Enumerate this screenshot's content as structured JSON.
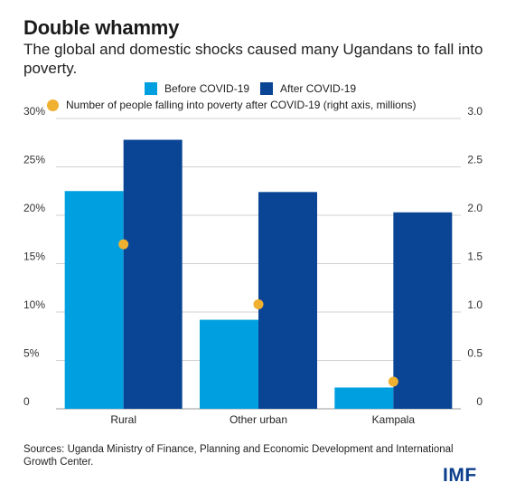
{
  "header": {
    "title": "Double whammy",
    "subtitle": "The global and domestic shocks caused many Ugandans to fall into poverty."
  },
  "legend": {
    "before": "Before COVID-19",
    "after": "After COVID-19",
    "people": "Number of people falling into poverty after COVID-19 (right axis, millions)"
  },
  "colors": {
    "before": "#00a0e0",
    "after": "#0a4595",
    "people": "#f0b030",
    "grid": "#d0d0d0"
  },
  "chart_data": {
    "type": "bar",
    "categories": [
      "Rural",
      "Other urban",
      "Kampala"
    ],
    "series": [
      {
        "name": "Before COVID-19",
        "values": [
          22.5,
          9.2,
          2.2
        ],
        "axis": "left",
        "kind": "bar"
      },
      {
        "name": "After COVID-19",
        "values": [
          27.8,
          22.4,
          20.3
        ],
        "axis": "left",
        "kind": "bar"
      },
      {
        "name": "Number of people falling into poverty after COVID-19 (right axis, millions)",
        "values": [
          1.7,
          1.08,
          0.28
        ],
        "axis": "right",
        "kind": "scatter"
      }
    ],
    "ylim": [
      0,
      30
    ],
    "y2lim": [
      0,
      3.0
    ],
    "yticks": [
      "0",
      "5%",
      "10%",
      "15%",
      "20%",
      "25%",
      "30%"
    ],
    "y2ticks": [
      "0",
      "0.5",
      "1.0",
      "1.5",
      "2.0",
      "2.5",
      "3.0"
    ],
    "grid": true
  },
  "footer": {
    "sources": "Sources: Uganda Ministry of Finance, Planning and Economic Development and International Growth Center.",
    "logo": "IMF"
  }
}
